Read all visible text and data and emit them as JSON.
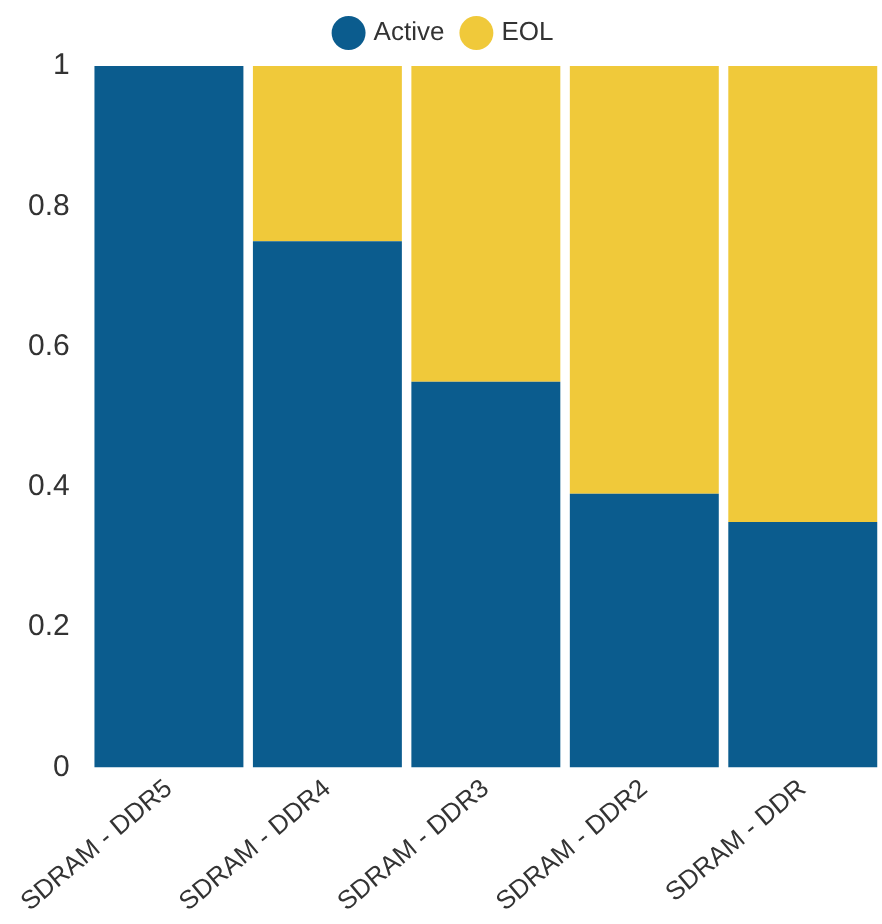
{
  "chart_data": {
    "type": "bar",
    "stacked": true,
    "categories": [
      "SDRAM - DDR5",
      "SDRAM - DDR4",
      "SDRAM - DDR3",
      "SDRAM - DDR2",
      "SDRAM - DDR"
    ],
    "series": [
      {
        "name": "Active",
        "color": "#0b5c8e",
        "values": [
          1,
          0.75,
          0.55,
          0.39,
          0.35
        ]
      },
      {
        "name": "EOL",
        "color": "#f0c93a",
        "values": [
          0,
          0.25,
          0.45,
          0.61,
          0.65
        ]
      }
    ],
    "ylim": [
      0,
      1
    ],
    "yticks": [
      0,
      0.2,
      0.4,
      0.6,
      0.8,
      1
    ],
    "grid": false,
    "legend": "top"
  }
}
